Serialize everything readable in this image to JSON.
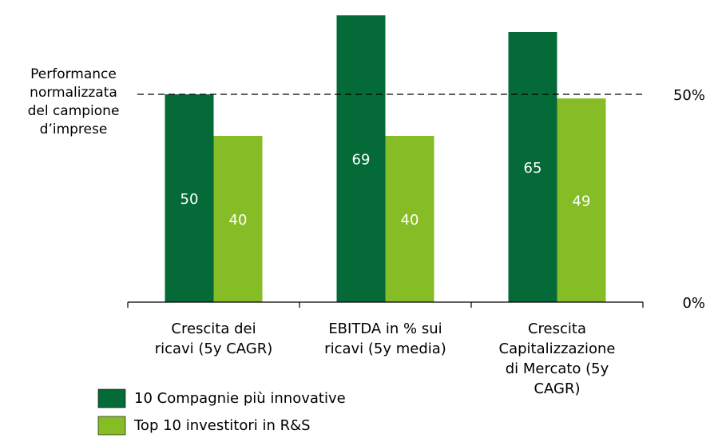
{
  "chart_data": {
    "type": "bar",
    "categories": [
      [
        "Crescita dei",
        "ricavi (5y CAGR)"
      ],
      [
        "EBITDA in % sui",
        "ricavi (5y media)"
      ],
      [
        "Crescita",
        "Capitalizzazione",
        "di Mercato (5y",
        "CAGR)"
      ]
    ],
    "series": [
      {
        "name": "10 Compagnie più innovative",
        "color": "#046a38",
        "values": [
          50,
          69,
          65
        ]
      },
      {
        "name": "Top 10 investitori in R&S",
        "color": "#86bc25",
        "values": [
          40,
          40,
          49
        ]
      }
    ],
    "ylim": [
      0,
      70
    ],
    "yticks": [
      {
        "value": 0,
        "label": "0%"
      },
      {
        "value": 50,
        "label": "50%"
      }
    ],
    "reference": {
      "value": 50,
      "label": [
        "Performance",
        "normalizzata",
        "del campione",
        "d’imprese"
      ]
    }
  }
}
